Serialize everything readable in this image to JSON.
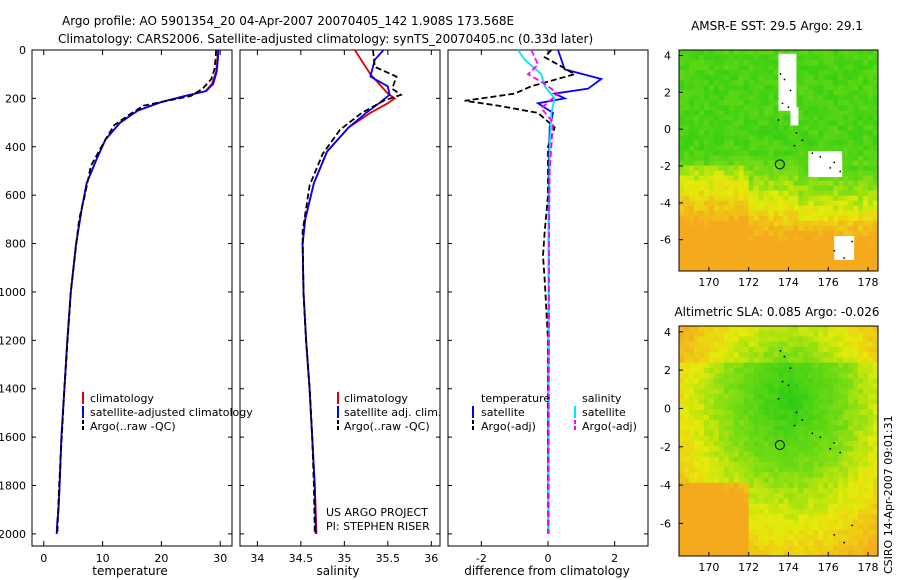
{
  "header": {
    "line1": "Argo profile: AO 5901354_20 04-Apr-2007 20070405_142 1.908S 173.568E",
    "line2": "Climatology: CARS2006. Satellite-adjusted climatology: synTS_20070405.nc (0.33d later)"
  },
  "footer": {
    "project": "US ARGO PROJECT",
    "pi": "PI: STEPHEN RISER",
    "stamp": "CSIRO 14-Apr-2007 09:01:31"
  },
  "colors": {
    "climatology": "#e00000",
    "satellite": "#0000ff",
    "argo": "#000000",
    "salinity_sat": "#00e5ff",
    "salinity_argo": "#ff00ff"
  },
  "chart_data": [
    {
      "type": "line",
      "id": "temperature",
      "xlabel": "temperature",
      "ylabel": "",
      "xlim": [
        -2,
        32
      ],
      "ylim": [
        2050,
        0
      ],
      "xticks": [
        0,
        10,
        20,
        30
      ],
      "yticks": [
        0,
        200,
        400,
        600,
        800,
        1000,
        1200,
        1400,
        1600,
        1800,
        2000
      ],
      "legend": [
        "climatology",
        "satellite-adjusted climatology",
        "Argo(..raw -QC)"
      ],
      "series": [
        {
          "name": "climatology",
          "color": "#e00000",
          "style": "solid",
          "x": [
            29.6,
            29.5,
            29.3,
            28.6,
            27.5,
            24,
            20,
            16,
            13,
            10.5,
            9,
            7.3,
            6.5,
            5.5,
            4.6,
            4,
            3.5,
            3,
            2.7,
            2.5,
            2.3,
            2.2
          ],
          "y": [
            0,
            40,
            90,
            140,
            170,
            190,
            215,
            250,
            300,
            370,
            450,
            550,
            650,
            800,
            1000,
            1200,
            1400,
            1600,
            1800,
            1900,
            1950,
            2000
          ]
        },
        {
          "name": "satellite-adjusted climatology",
          "color": "#0000ff",
          "style": "solid",
          "x": [
            29.7,
            29.6,
            29.4,
            28.8,
            27.6,
            24,
            20,
            16,
            13,
            10.5,
            9,
            7.3,
            6.5,
            5.5,
            4.6,
            4,
            3.5,
            3,
            2.7,
            2.5,
            2.3,
            2.2
          ],
          "y": [
            0,
            40,
            90,
            140,
            170,
            190,
            215,
            250,
            300,
            370,
            450,
            550,
            650,
            800,
            1000,
            1200,
            1400,
            1600,
            1800,
            1900,
            1950,
            2000
          ]
        },
        {
          "name": "Argo(..raw -QC)",
          "color": "#000000",
          "style": "dashed",
          "x": [
            29.3,
            29.2,
            29,
            28.5,
            27,
            25,
            23,
            21,
            17,
            15,
            12,
            10.5,
            8,
            7,
            6,
            4.6,
            3.5,
            2.6,
            2.3
          ],
          "y": [
            0,
            40,
            80,
            120,
            160,
            190,
            200,
            210,
            230,
            260,
            310,
            370,
            480,
            600,
            700,
            1000,
            1400,
            1800,
            2000
          ]
        }
      ]
    },
    {
      "type": "line",
      "id": "salinity",
      "xlabel": "salinity",
      "xlim": [
        33.8,
        36.1
      ],
      "ylim": [
        2050,
        0
      ],
      "xticks": [
        34,
        34.5,
        35,
        35.5,
        36
      ],
      "legend": [
        "climatology",
        "satellite adj. clim.",
        "Argo(..raw -QC)"
      ],
      "series": [
        {
          "name": "climatology",
          "color": "#e00000",
          "style": "solid",
          "x": [
            35.12,
            35.3,
            35.5,
            35.58,
            35.5,
            35.3,
            35.05,
            34.8,
            34.65,
            34.55,
            34.52,
            34.53,
            34.56,
            34.6,
            34.63,
            34.66,
            34.67,
            34.68
          ],
          "y": [
            0,
            100,
            180,
            200,
            220,
            260,
            320,
            420,
            550,
            700,
            800,
            1000,
            1200,
            1400,
            1600,
            1800,
            1900,
            2000
          ]
        },
        {
          "name": "satellite adj. clim.",
          "color": "#0000ff",
          "style": "solid",
          "x": [
            35.45,
            35.35,
            35.3,
            35.5,
            35.52,
            35.4,
            35.25,
            35.05,
            34.8,
            34.65,
            34.55,
            34.52,
            34.53,
            34.56,
            34.6,
            34.63,
            34.66,
            34.67
          ],
          "y": [
            0,
            40,
            110,
            150,
            185,
            220,
            260,
            320,
            420,
            550,
            700,
            800,
            1000,
            1200,
            1400,
            1600,
            1800,
            2000
          ]
        },
        {
          "name": "Argo(..raw -QC)",
          "color": "#000000",
          "style": "dashed",
          "x": [
            35.33,
            35.35,
            35.6,
            35.55,
            35.65,
            35.45,
            35.2,
            34.95,
            34.75,
            34.6,
            34.52,
            34.53,
            34.56,
            34.6,
            34.63,
            34.65,
            34.66
          ],
          "y": [
            0,
            70,
            110,
            160,
            185,
            210,
            260,
            330,
            430,
            560,
            750,
            1000,
            1200,
            1400,
            1600,
            1800,
            2000
          ]
        }
      ]
    },
    {
      "type": "line",
      "id": "difference",
      "xlabel": "difference from climatology",
      "xlim": [
        -3,
        3
      ],
      "ylim": [
        2050,
        0
      ],
      "xticks": [
        -2,
        0,
        2
      ],
      "legend_titles": [
        "temperature",
        "salinity"
      ],
      "legend": [
        "satellite",
        "Argo(-adj)",
        "satellite",
        "Argo(-adj)"
      ],
      "series": [
        {
          "name": "temperature satellite",
          "color": "#0000ff",
          "style": "solid",
          "x": [
            0.3,
            0.5,
            1.6,
            1.2,
            0.2,
            0.5,
            -0.3,
            0.15,
            0.05,
            0.02,
            0.02,
            0.01,
            0.01
          ],
          "y": [
            0,
            80,
            120,
            160,
            180,
            200,
            220,
            260,
            320,
            500,
            1000,
            1500,
            2000
          ]
        },
        {
          "name": "temperature Argo(-adj)",
          "color": "#000000",
          "style": "dashed",
          "x": [
            0.1,
            -0.1,
            0.3,
            0.8,
            -0.5,
            -1,
            -2.5,
            -1.5,
            -0.3,
            0.2,
            0,
            0,
            -0.1,
            -0.15,
            -0.1,
            0,
            0,
            0
          ],
          "y": [
            0,
            30,
            60,
            100,
            150,
            180,
            210,
            230,
            260,
            320,
            400,
            600,
            750,
            850,
            950,
            1200,
            1600,
            2000
          ]
        },
        {
          "name": "salinity satellite",
          "color": "#00e5ff",
          "style": "solid",
          "x": [
            -0.9,
            -0.7,
            -0.2,
            -0.1,
            0.2,
            0.1,
            0.05,
            0.02,
            0.02,
            0.01
          ],
          "y": [
            0,
            40,
            100,
            150,
            200,
            260,
            400,
            800,
            1500,
            2000
          ]
        },
        {
          "name": "salinity Argo(-adj)",
          "color": "#ff00ff",
          "style": "dashed",
          "x": [
            -0.5,
            -0.3,
            -0.6,
            -0.1,
            0.3,
            -0.2,
            0.15,
            0.05,
            0.03,
            0.03,
            0.02,
            0.02
          ],
          "y": [
            0,
            60,
            100,
            140,
            180,
            240,
            300,
            500,
            800,
            1200,
            1600,
            2000
          ]
        }
      ]
    },
    {
      "type": "heatmap",
      "id": "amsre",
      "title": "AMSR-E SST: 29.5 Argo: 29.1",
      "xlim": [
        168.5,
        178.5
      ],
      "ylim": [
        -7.7,
        4.3
      ],
      "xticks": [
        170,
        172,
        174,
        176,
        178
      ],
      "yticks": [
        -6,
        -4,
        -2,
        0,
        2,
        4
      ],
      "marker": {
        "lon": 173.568,
        "lat": -1.908
      }
    },
    {
      "type": "heatmap",
      "id": "sla",
      "title": "Altimetric SLA: 0.085 Argo: -0.026",
      "xlim": [
        168.5,
        178.5
      ],
      "ylim": [
        -7.7,
        4.3
      ],
      "xticks": [
        170,
        172,
        174,
        176,
        178
      ],
      "yticks": [
        -6,
        -4,
        -2,
        0,
        2,
        4
      ],
      "marker": {
        "lon": 173.568,
        "lat": -1.908
      }
    }
  ]
}
